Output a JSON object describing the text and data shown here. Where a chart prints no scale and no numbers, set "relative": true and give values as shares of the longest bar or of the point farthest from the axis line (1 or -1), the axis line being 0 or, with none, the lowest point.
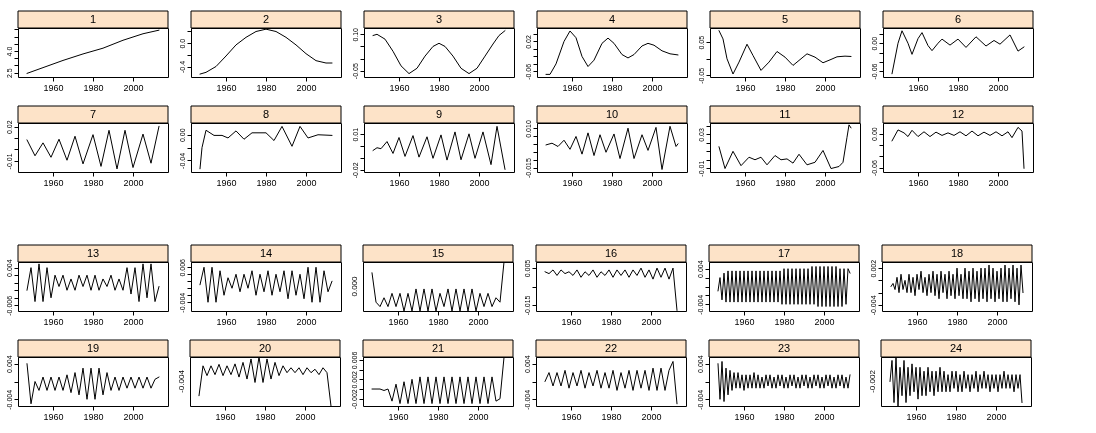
{
  "chart_data": [
    {
      "type": "line",
      "title": "1",
      "x": [
        1947,
        1955,
        1965,
        1975,
        1985,
        1995,
        2005,
        2013
      ],
      "values": [
        2.45,
        2.85,
        3.35,
        3.8,
        4.2,
        4.75,
        5.2,
        5.45
      ],
      "color": "#000000",
      "xlim": [
        1942.5,
        2017.5
      ],
      "xticks": [
        1960,
        1980,
        2000
      ],
      "ylim": [
        2.2,
        5.6
      ],
      "yticks": [
        2.5,
        {
          "value": 3,
          "label": null
        },
        {
          "value": 3.5,
          "label": null
        },
        {
          "value": 4,
          "label": "4.0"
        },
        {
          "value": 4.5,
          "label": null
        },
        {
          "value": 5,
          "label": null
        },
        {
          "value": 5.5,
          "label": null
        }
      ]
    },
    {
      "type": "line",
      "title": "2",
      "x": [
        1947,
        1950,
        1955,
        1960,
        1965,
        1970,
        1975,
        1980,
        1985,
        1990,
        1995,
        2000,
        2005,
        2010,
        2013
      ],
      "values": [
        -0.53,
        -0.5,
        -0.4,
        -0.22,
        -0.03,
        0.1,
        0.2,
        0.24,
        0.2,
        0.1,
        -0.03,
        -0.18,
        -0.3,
        -0.34,
        -0.34
      ],
      "color": "#000000",
      "xlim": [
        1942.5,
        2017.5
      ],
      "xticks": [
        1960,
        1980,
        2000
      ],
      "ylim": [
        -0.58,
        0.26
      ],
      "yticks": [
        -0.4,
        {
          "value": -0.2,
          "label": null
        },
        {
          "value": 0,
          "label": "0.0"
        },
        {
          "value": 0.2,
          "label": null
        }
      ]
    },
    {
      "type": "line",
      "title": "3",
      "x": [
        1947,
        1949,
        1953,
        1957,
        1961,
        1965,
        1969,
        1973,
        1977,
        1980,
        1983,
        1987,
        1991,
        1995,
        1999,
        2003,
        2007,
        2010,
        2013
      ],
      "values": [
        0.095,
        0.1,
        0.08,
        0.03,
        -0.03,
        -0.062,
        -0.04,
        0.01,
        0.05,
        0.063,
        0.05,
        0.01,
        -0.04,
        -0.062,
        -0.04,
        0.01,
        0.06,
        0.095,
        0.115
      ],
      "color": "#000000",
      "xlim": [
        1942.5,
        2017.5
      ],
      "xticks": [
        1960,
        1980,
        2000
      ],
      "ylim": [
        -0.076,
        0.126
      ],
      "yticks": [
        -0.05,
        {
          "value": 0,
          "label": null
        },
        {
          "value": 0.05,
          "label": null
        },
        {
          "value": 0.1,
          "label": "0.10"
        }
      ]
    },
    {
      "type": "line",
      "title": "4",
      "x": [
        1947,
        1949,
        1952,
        1956,
        1959,
        1962,
        1965,
        1968,
        1971,
        1975,
        1978,
        1981,
        1985,
        1988,
        1991,
        1995,
        1998,
        2001,
        2005,
        2009,
        2013
      ],
      "values": [
        -0.068,
        -0.068,
        -0.04,
        0.02,
        0.048,
        0.03,
        -0.02,
        -0.047,
        -0.03,
        0.015,
        0.029,
        0.015,
        -0.015,
        -0.024,
        -0.015,
        0.008,
        0.015,
        0.01,
        -0.005,
        -0.013,
        -0.016
      ],
      "color": "#000000",
      "xlim": [
        1942.5,
        2017.5
      ],
      "xticks": [
        1960,
        1980,
        2000
      ],
      "ylim": [
        -0.075,
        0.056
      ],
      "yticks": [
        -0.06,
        {
          "value": -0.04,
          "label": null
        },
        {
          "value": -0.02,
          "label": null
        },
        {
          "value": 0,
          "label": null
        },
        0.02,
        {
          "value": 0.04,
          "label": null
        }
      ]
    },
    {
      "type": "line",
      "title": "5",
      "x": [
        1947,
        1949,
        1951,
        1954,
        1957,
        1961,
        1964,
        1968,
        1972,
        1976,
        1980,
        1984,
        1987,
        1991,
        1995,
        1999,
        2003,
        2006,
        2010,
        2013
      ],
      "values": [
        0.085,
        0.06,
        0,
        -0.046,
        -0.01,
        0.044,
        0.01,
        -0.035,
        -0.01,
        0.022,
        0.005,
        -0.02,
        -0.005,
        0.015,
        0.005,
        -0.012,
        -0.002,
        0.006,
        0.008,
        0.007
      ],
      "color": "#000000",
      "xlim": [
        1942.5,
        2017.5
      ],
      "xticks": [
        1960,
        1980,
        2000
      ],
      "ylim": [
        -0.055,
        0.093
      ],
      "yticks": [
        -0.05,
        {
          "value": 0,
          "label": null
        },
        0.05
      ]
    },
    {
      "type": "line",
      "title": "6",
      "x": [
        1947,
        1950,
        1952,
        1955,
        1957,
        1960,
        1962,
        1965,
        1967,
        1970,
        1972,
        1976,
        1980,
        1984,
        1989,
        1994,
        1998,
        2001,
        2006,
        2010,
        2013
      ],
      "values": [
        -0.066,
        0,
        0.027,
        0,
        -0.024,
        0.01,
        0.023,
        -0.005,
        -0.016,
        0,
        0.009,
        -0.004,
        0.009,
        -0.009,
        0.014,
        -0.006,
        0.006,
        -0.002,
        0.018,
        -0.017,
        -0.008
      ],
      "color": "#000000",
      "xlim": [
        1942.5,
        2017.5
      ],
      "xticks": [
        1960,
        1980,
        2000
      ],
      "ylim": [
        -0.073,
        0.033
      ],
      "yticks": [
        -0.06,
        {
          "value": -0.04,
          "label": null
        },
        {
          "value": -0.02,
          "label": null
        },
        {
          "value": 0,
          "label": "0.00"
        },
        {
          "value": 0.02,
          "label": null
        }
      ]
    },
    {
      "type": "line",
      "title": "7",
      "x": [
        1947,
        1951,
        1955,
        1959,
        1963,
        1967,
        1971,
        1975,
        1980,
        1984,
        1988,
        1992,
        1996,
        2000,
        2005,
        2009,
        2013
      ],
      "values": [
        0.0084,
        -0.0055,
        0.0058,
        -0.0068,
        0.009,
        -0.0094,
        0.0116,
        -0.0126,
        0.013,
        -0.0148,
        0.0168,
        -0.017,
        0.0168,
        -0.0158,
        0.0135,
        -0.012,
        0.0203
      ],
      "color": "#000000",
      "xlim": [
        1942.5,
        2017.5
      ],
      "xticks": [
        1960,
        1980,
        2000
      ],
      "ylim": [
        -0.0197,
        0.0232
      ],
      "yticks": [
        -0.01,
        {
          "value": 0,
          "label": null
        },
        {
          "value": 0.01,
          "label": null
        },
        0.02
      ]
    },
    {
      "type": "line",
      "title": "8",
      "x": [
        1947,
        1948,
        1950,
        1954,
        1958,
        1961,
        1965,
        1969,
        1973,
        1980,
        1984,
        1988,
        1993,
        1997,
        2001,
        2006,
        2013
      ],
      "values": [
        -0.053,
        -0.02,
        0.007,
        -0.001,
        -0.001,
        -0.005,
        0.006,
        -0.007,
        0.003,
        0.003,
        -0.009,
        0.013,
        -0.018,
        0.013,
        -0.005,
        0,
        -0.001
      ],
      "color": "#000000",
      "xlim": [
        1942.5,
        2017.5
      ],
      "xticks": [
        1960,
        1980,
        2000
      ],
      "ylim": [
        -0.058,
        0.0183
      ],
      "yticks": [
        -0.04,
        {
          "value": -0.02,
          "label": null
        },
        {
          "value": 0,
          "label": "0.00"
        }
      ]
    },
    {
      "type": "line",
      "title": "9",
      "x": [
        1947,
        1949,
        1951,
        1954,
        1957,
        1960,
        1963,
        1967,
        1970,
        1974,
        1977,
        1981,
        1984,
        1988,
        1991,
        1995,
        1998,
        2002,
        2006,
        2009,
        2013
      ],
      "values": [
        -0.0037,
        -0.0014,
        -0.0022,
        0.0038,
        -0.0062,
        0.0072,
        -0.0087,
        0.0088,
        -0.0093,
        0.0078,
        -0.0103,
        0.0094,
        -0.0118,
        0.0119,
        -0.0115,
        0.0103,
        -0.0103,
        0.0119,
        -0.0156,
        0.0166,
        -0.0196
      ],
      "color": "#000000",
      "xlim": [
        1942.5,
        2017.5
      ],
      "xticks": [
        1960,
        1980,
        2000
      ],
      "ylim": [
        -0.0218,
        0.0194
      ],
      "yticks": [
        -0.02,
        {
          "value": -0.01,
          "label": null
        },
        {
          "value": 0,
          "label": null
        },
        0.01
      ]
    },
    {
      "type": "line",
      "title": "10",
      "x": [
        1947,
        1950,
        1953,
        1956,
        1959,
        1962,
        1965,
        1968,
        1971,
        1974,
        1977,
        1981,
        1984,
        1988,
        1991,
        1995,
        1998,
        2002,
        2005,
        2009,
        2012,
        2013
      ],
      "values": [
        -0.0005,
        0.0006,
        -0.0015,
        0.0025,
        -0.0033,
        0.0049,
        -0.0064,
        0.0072,
        -0.0073,
        0.006,
        -0.0052,
        0.0065,
        -0.0092,
        0.0102,
        -0.0092,
        0.006,
        -0.004,
        0.0107,
        -0.0162,
        0.0114,
        -0.0015,
        0.0002
      ],
      "color": "#000000",
      "xlim": [
        1942.5,
        2017.5
      ],
      "xticks": [
        1960,
        1980,
        2000
      ],
      "ylim": [
        -0.0178,
        0.0135
      ],
      "yticks": [
        -0.015,
        {
          "value": -0.01,
          "label": null
        },
        {
          "value": -0.005,
          "label": null
        },
        {
          "value": 0,
          "label": null
        },
        {
          "value": 0.005,
          "label": null
        },
        {
          "value": 0.01,
          "label": "0.010"
        }
      ]
    },
    {
      "type": "line",
      "title": "11",
      "x": [
        1947,
        1950,
        1954,
        1958,
        1962,
        1965,
        1968,
        1971,
        1975,
        1978,
        1981,
        1984,
        1987,
        1991,
        1995,
        1999,
        2003,
        2007,
        2009,
        2011,
        2012,
        2013
      ],
      "values": [
        0.0154,
        -0.0104,
        0.01,
        -0.007,
        0.003,
        0,
        0.003,
        -0.006,
        0.005,
        0,
        0.001,
        -0.004,
        0.0065,
        -0.006,
        -0.003,
        0.011,
        -0.0104,
        -0.008,
        -0.003,
        0.0266,
        0.0413,
        0.0377
      ],
      "color": "#000000",
      "xlim": [
        1942.5,
        2017.5
      ],
      "xticks": [
        1960,
        1980,
        2000
      ],
      "ylim": [
        -0.0145,
        0.0435
      ],
      "yticks": [
        -0.01,
        {
          "value": 0,
          "label": null
        },
        {
          "value": 0.01,
          "label": null
        },
        {
          "value": 0.02,
          "label": null
        },
        0.03,
        {
          "value": 0.04,
          "label": null
        }
      ]
    },
    {
      "type": "line",
      "title": "12",
      "x": [
        1947,
        1950,
        1953,
        1955,
        1957,
        1960,
        1963,
        1966,
        1969,
        1972,
        1975,
        1978,
        1981,
        1984,
        1987,
        1990,
        1993,
        1996,
        1999,
        2002,
        2005,
        2007,
        2010,
        2012,
        2013
      ],
      "values": [
        -0.0129,
        0.0065,
        0.0013,
        -0.0052,
        0.0058,
        -0.0052,
        0.0032,
        -0.0052,
        0.0026,
        -0.0032,
        0.0013,
        -0.0032,
        0.0032,
        -0.0039,
        0.0045,
        -0.0039,
        0.0026,
        -0.0032,
        0.0032,
        -0.0039,
        0.0032,
        -0.0071,
        0.011,
        0.0045,
        -0.0613
      ],
      "color": "#000000",
      "xlim": [
        1942.5,
        2017.5
      ],
      "xticks": [
        1960,
        1980,
        2000
      ],
      "ylim": [
        -0.0677,
        0.0187
      ],
      "yticks": [
        -0.06,
        {
          "value": -0.04,
          "label": null
        },
        {
          "value": -0.02,
          "label": null
        },
        {
          "value": 0,
          "label": "0.00"
        }
      ]
    },
    {
      "type": "line",
      "title": "13",
      "x": [
        1947,
        1949,
        1951,
        1953,
        1955,
        1957,
        1959,
        1961,
        1963,
        1965,
        1967,
        1969,
        1971,
        1973,
        1975,
        1977,
        1979,
        1981,
        1983,
        1985,
        1987,
        1989,
        1991,
        1993,
        1995,
        1997,
        1999,
        2001,
        2003,
        2005,
        2007,
        2009,
        2011,
        2013
      ],
      "values": [
        -0.002,
        0.004,
        -0.005,
        0.005,
        -0.005,
        0.004,
        -0.004,
        0.002,
        -0.001,
        0.002,
        -0.002,
        0.001,
        -0.002,
        0.002,
        -0.001,
        0.002,
        -0.002,
        0.002,
        -0.002,
        0.001,
        -0.001,
        0.002,
        -0.002,
        0.001,
        -0.002,
        0.004,
        -0.003,
        0.004,
        -0.005,
        0.005,
        -0.004,
        0.005,
        -0.005,
        -0.001
      ],
      "color": "#000000",
      "xlim": [
        1942.5,
        2017.5
      ],
      "xticks": [
        1960,
        1980,
        2000
      ],
      "ylim": [
        -0.0075,
        0.0055
      ],
      "yticks": [
        -0.006,
        {
          "value": -0.004,
          "label": null
        },
        {
          "value": -0.002,
          "label": null
        },
        {
          "value": 0,
          "label": null
        },
        {
          "value": 0.002,
          "label": null
        },
        0.004
      ]
    },
    {
      "type": "line",
      "title": "14",
      "x": [
        1947,
        1949,
        1951,
        1953,
        1955,
        1957,
        1959,
        1961,
        1963,
        1965,
        1967,
        1969,
        1971,
        1973,
        1975,
        1977,
        1979,
        1981,
        1983,
        1985,
        1987,
        1989,
        1991,
        1993,
        1995,
        1997,
        1999,
        2001,
        2003,
        2005,
        2007,
        2009,
        2011,
        2013
      ],
      "values": [
        0.001,
        0.006,
        -0.004,
        0.006,
        -0.004,
        0.005,
        -0.002,
        0.003,
        0,
        0.004,
        -0.001,
        0.004,
        0,
        0.005,
        -0.002,
        0.004,
        -0.001,
        0.005,
        -0.002,
        0.004,
        -0.001,
        0.005,
        -0.003,
        0.005,
        -0.002,
        0.004,
        -0.003,
        0.006,
        -0.004,
        0.006,
        -0.004,
        0.005,
        -0.001,
        0.002
      ],
      "color": "#000000",
      "xlim": [
        1942.5,
        2017.5
      ],
      "xticks": [
        1960,
        1980,
        2000
      ],
      "ylim": [
        -0.0065,
        0.0075
      ],
      "yticks": [
        -0.004,
        {
          "value": -0.002,
          "label": null
        },
        {
          "value": 0,
          "label": null
        },
        {
          "value": 0.002,
          "label": null
        },
        {
          "value": 0.004,
          "label": null
        },
        0.006
      ]
    },
    {
      "type": "line",
      "title": "15",
      "x": [
        1947,
        1949,
        1951,
        1953,
        1955,
        1957,
        1959,
        1961,
        1963,
        1965,
        1967,
        1969,
        1971,
        1973,
        1975,
        1977,
        1979,
        1981,
        1983,
        1985,
        1987,
        1989,
        1991,
        1993,
        1995,
        1997,
        1999,
        2001,
        2003,
        2005,
        2007,
        2009,
        2011,
        2013
      ],
      "values": [
        0.78,
        0.18,
        0.09,
        0.27,
        0.09,
        0.36,
        0.09,
        0.36,
        0,
        0.36,
        0,
        0.45,
        0,
        0.45,
        0,
        0.45,
        0,
        0.36,
        0.09,
        0.45,
        0,
        0.45,
        0,
        0.45,
        0,
        0.45,
        0,
        0.36,
        0.09,
        0.36,
        0.09,
        0.27,
        0.18,
        1
      ],
      "relative": true,
      "annotations": [
        "0.000"
      ],
      "color": "#000000",
      "xlim": [
        1942.5,
        2017.5
      ],
      "xticks": [
        1960,
        1980,
        2000
      ]
    },
    {
      "type": "line",
      "title": "16",
      "x": [
        1947,
        1949,
        1951,
        1953,
        1955,
        1957,
        1959,
        1961,
        1963,
        1965,
        1967,
        1969,
        1971,
        1973,
        1975,
        1977,
        1979,
        1981,
        1983,
        1985,
        1987,
        1989,
        1991,
        1993,
        1995,
        1997,
        1999,
        2001,
        2003,
        2005,
        2007,
        2009,
        2011,
        2013
      ],
      "values": [
        0.003,
        0.002,
        0.004,
        0.001,
        0.004,
        0.002,
        0.003,
        0.001,
        0.004,
        0,
        0.003,
        0.001,
        0.004,
        0,
        0.003,
        0.001,
        0.004,
        0,
        0.004,
        0.001,
        0.004,
        0,
        0.004,
        0.001,
        0.005,
        0,
        0.004,
        -0.001,
        0.005,
        0,
        0.005,
        -0.001,
        0.005,
        -0.018
      ],
      "color": "#000000",
      "xlim": [
        1942.5,
        2017.5
      ],
      "xticks": [
        1960,
        1980,
        2000
      ],
      "ylim": [
        -0.0183,
        0.0083
      ],
      "yticks": [
        -0.015,
        {
          "value": -0.005,
          "label": null
        },
        0.005
      ]
    },
    {
      "type": "line",
      "title": "17",
      "x": [
        1947,
        1948,
        1949,
        1950,
        1951,
        1952,
        1953,
        1954,
        1955,
        1956,
        1957,
        1958,
        1959,
        1960,
        1961,
        1962,
        1963,
        1964,
        1965,
        1966,
        1967,
        1968,
        1969,
        1970,
        1971,
        1972,
        1973,
        1974,
        1975,
        1976,
        1977,
        1978,
        1979,
        1980,
        1981,
        1982,
        1983,
        1984,
        1985,
        1986,
        1987,
        1988,
        1989,
        1990,
        1991,
        1992,
        1993,
        1994,
        1995,
        1996,
        1997,
        1998,
        1999,
        2000,
        2001,
        2002,
        2003,
        2004,
        2005,
        2006,
        2007,
        2008,
        2009,
        2010,
        2011,
        2012,
        2013
      ],
      "values": [
        -0.001,
        0.002,
        -0.003,
        0.003,
        -0.0035,
        0.0035,
        -0.0035,
        0.0035,
        -0.0035,
        0.0035,
        -0.0035,
        0.0035,
        -0.0035,
        0.0035,
        -0.0035,
        0.0035,
        -0.0035,
        0.0035,
        -0.0035,
        0.0035,
        -0.0035,
        0.0035,
        -0.0035,
        0.0035,
        -0.0035,
        0.0035,
        -0.0035,
        0.0035,
        -0.0035,
        0.0035,
        -0.0035,
        0.0035,
        -0.004,
        0.004,
        -0.004,
        0.004,
        -0.004,
        0.004,
        -0.004,
        0.004,
        -0.004,
        0.004,
        -0.004,
        0.004,
        -0.004,
        0.004,
        -0.004,
        0.0045,
        -0.004,
        0.0045,
        -0.0045,
        0.0045,
        -0.0045,
        0.0045,
        -0.0045,
        0.0045,
        -0.0045,
        0.0045,
        -0.0045,
        0.0045,
        -0.0045,
        0.004,
        -0.0045,
        0.004,
        -0.004,
        0.004,
        0.003
      ],
      "color": "#000000",
      "xlim": [
        1942.5,
        2017.5
      ],
      "xticks": [
        1960,
        1980,
        2000
      ],
      "ylim": [
        -0.0055,
        0.0055
      ],
      "yticks": [
        -0.004,
        {
          "value": -0.002,
          "label": null
        },
        {
          "value": 0,
          "label": null
        },
        {
          "value": 0.002,
          "label": null
        },
        0.004
      ]
    },
    {
      "type": "line",
      "title": "18",
      "x": [
        1947,
        1948,
        1949,
        1950,
        1951,
        1952,
        1953,
        1954,
        1955,
        1956,
        1957,
        1958,
        1959,
        1960,
        1961,
        1962,
        1963,
        1964,
        1965,
        1966,
        1967,
        1968,
        1969,
        1970,
        1971,
        1972,
        1973,
        1974,
        1975,
        1976,
        1977,
        1978,
        1979,
        1980,
        1981,
        1982,
        1983,
        1984,
        1985,
        1986,
        1987,
        1988,
        1989,
        1990,
        1991,
        1992,
        1993,
        1994,
        1995,
        1996,
        1997,
        1998,
        1999,
        2000,
        2001,
        2002,
        2003,
        2004,
        2005,
        2006,
        2007,
        2008,
        2009,
        2010,
        2011,
        2012,
        2013
      ],
      "values": [
        -0.001,
        -0.0005,
        -0.0015,
        0.0005,
        -0.002,
        0.001,
        -0.0015,
        0,
        -0.002,
        0.001,
        -0.002,
        0.0005,
        -0.0025,
        0.001,
        -0.0015,
        0.0015,
        -0.002,
        0.0005,
        -0.0025,
        0.001,
        -0.002,
        0.0015,
        -0.0025,
        0.001,
        -0.003,
        0.0015,
        -0.002,
        0.001,
        -0.003,
        0.0015,
        -0.0025,
        0.001,
        -0.003,
        0.002,
        -0.0025,
        0.001,
        -0.003,
        0.002,
        -0.003,
        0.0015,
        -0.0035,
        0.002,
        -0.003,
        0.0015,
        -0.0035,
        0.002,
        -0.003,
        0.002,
        -0.0035,
        0.0025,
        -0.003,
        0.002,
        -0.0035,
        0.0015,
        -0.003,
        0.002,
        -0.0035,
        0.0025,
        -0.0035,
        0.002,
        -0.003,
        0.0025,
        -0.0035,
        0.002,
        -0.004,
        0.0025,
        -0.002
      ],
      "color": "#000000",
      "xlim": [
        1942.5,
        2017.5
      ],
      "xticks": [
        1960,
        1980,
        2000
      ],
      "ylim": [
        -0.005,
        0.003
      ],
      "yticks": [
        -0.004,
        {
          "value": -0.002,
          "label": null
        },
        {
          "value": 0,
          "label": null
        },
        0.002
      ]
    },
    {
      "type": "line",
      "title": "19",
      "x": [
        1947,
        1949,
        1951,
        1953,
        1955,
        1957,
        1959,
        1961,
        1963,
        1965,
        1967,
        1969,
        1971,
        1973,
        1975,
        1977,
        1979,
        1981,
        1983,
        1985,
        1987,
        1989,
        1991,
        1993,
        1995,
        1997,
        1999,
        2001,
        2003,
        2005,
        2007,
        2009,
        2011,
        2013
      ],
      "values": [
        0.004,
        -0.005,
        0,
        -0.002,
        0.001,
        -0.002,
        0.001,
        -0.002,
        0.001,
        -0.002,
        0.0015,
        -0.0025,
        0.002,
        -0.003,
        0.003,
        -0.004,
        0.003,
        -0.004,
        0.003,
        -0.003,
        0.002,
        -0.002,
        0.001,
        -0.002,
        0.001,
        -0.0015,
        0.001,
        -0.0015,
        0.001,
        -0.0015,
        0.001,
        -0.0015,
        0.0005,
        0.001
      ],
      "color": "#000000",
      "xlim": [
        1942.5,
        2017.5
      ],
      "xticks": [
        1960,
        1980,
        2000
      ],
      "ylim": [
        -0.0055,
        0.0055
      ],
      "yticks": [
        -0.004,
        {
          "value": 0,
          "label": null
        },
        0.004
      ]
    },
    {
      "type": "line",
      "title": "20",
      "x": [
        1947,
        1949,
        1951,
        1953,
        1955,
        1957,
        1959,
        1961,
        1963,
        1965,
        1967,
        1969,
        1971,
        1973,
        1975,
        1977,
        1979,
        1981,
        1983,
        1985,
        1987,
        1989,
        1991,
        1993,
        1995,
        1997,
        1999,
        2001,
        2003,
        2005,
        2007,
        2009,
        2011,
        2013
      ],
      "values": [
        0.21,
        0.82,
        0.62,
        0.82,
        0.64,
        0.85,
        0.62,
        0.82,
        0.64,
        0.86,
        0.59,
        0.89,
        0.55,
        0.96,
        0.48,
        1,
        0.48,
        0.96,
        0.55,
        0.89,
        0.62,
        0.82,
        0.68,
        0.78,
        0.68,
        0.78,
        0.64,
        0.78,
        0.68,
        0.75,
        0.64,
        0.78,
        0.68,
        0
      ],
      "relative": true,
      "annotations": [
        "-0.004"
      ],
      "color": "#000000",
      "xlim": [
        1942.5,
        2017.5
      ],
      "xticks": [
        1960,
        1980,
        2000
      ]
    },
    {
      "type": "line",
      "title": "21",
      "x": [
        1947,
        1949,
        1951,
        1953,
        1955,
        1957,
        1959,
        1961,
        1963,
        1965,
        1967,
        1969,
        1971,
        1973,
        1975,
        1977,
        1979,
        1981,
        1983,
        1985,
        1987,
        1989,
        1991,
        1993,
        1995,
        1997,
        1999,
        2001,
        2003,
        2005,
        2007,
        2009,
        2011,
        2013
      ],
      "values": [
        0,
        0,
        0,
        -0.0003,
        0,
        -0.0025,
        0.001,
        -0.003,
        0.0015,
        -0.003,
        0.002,
        -0.003,
        0.0025,
        -0.003,
        0.0025,
        -0.003,
        0.0025,
        -0.003,
        0.0025,
        -0.003,
        0.0025,
        -0.003,
        0.0025,
        -0.003,
        0.0025,
        -0.003,
        0.0025,
        -0.003,
        0.0025,
        -0.003,
        0.0025,
        -0.0025,
        -0.002,
        0.0065
      ],
      "color": "#000000",
      "xlim": [
        1942.5,
        2017.5
      ],
      "xticks": [
        1960,
        1980,
        2000
      ],
      "ylim": [
        -0.0035,
        0.0066
      ],
      "yticks": [
        -0.002,
        {
          "value": 0,
          "label": null
        },
        0.002,
        {
          "value": 0.004,
          "label": null
        },
        0.006
      ]
    },
    {
      "type": "line",
      "title": "22",
      "x": [
        1947,
        1949,
        1951,
        1953,
        1955,
        1957,
        1959,
        1961,
        1963,
        1965,
        1967,
        1969,
        1971,
        1973,
        1975,
        1977,
        1979,
        1981,
        1983,
        1985,
        1987,
        1989,
        1991,
        1993,
        1995,
        1997,
        1999,
        2001,
        2003,
        2005,
        2007,
        2009,
        2011,
        2013
      ],
      "values": [
        0,
        0.002,
        -0.001,
        0.002,
        -0.001,
        0.0025,
        -0.0015,
        0.002,
        -0.001,
        0.0025,
        -0.0015,
        0.002,
        -0.001,
        0.0025,
        -0.0015,
        0.002,
        -0.0015,
        0.0025,
        -0.002,
        0.002,
        -0.0015,
        0.0025,
        -0.002,
        0.0025,
        -0.0015,
        0.0025,
        -0.002,
        0.003,
        -0.002,
        0.003,
        -0.002,
        0.0025,
        0.0045,
        -0.005
      ],
      "color": "#000000",
      "xlim": [
        1942.5,
        2017.5
      ],
      "xticks": [
        1960,
        1980,
        2000
      ],
      "ylim": [
        -0.0055,
        0.0055
      ],
      "yticks": [
        -0.004,
        {
          "value": 0,
          "label": null
        },
        0.004
      ]
    },
    {
      "type": "line",
      "title": "23",
      "x": [
        1947,
        1948,
        1949,
        1950,
        1951,
        1952,
        1953,
        1954,
        1955,
        1956,
        1957,
        1958,
        1959,
        1960,
        1961,
        1962,
        1963,
        1964,
        1965,
        1966,
        1967,
        1968,
        1969,
        1970,
        1971,
        1972,
        1973,
        1974,
        1975,
        1976,
        1977,
        1978,
        1979,
        1980,
        1981,
        1982,
        1983,
        1984,
        1985,
        1986,
        1987,
        1988,
        1989,
        1990,
        1991,
        1992,
        1993,
        1994,
        1995,
        1996,
        1997,
        1998,
        1999,
        2000,
        2001,
        2002,
        2003,
        2004,
        2005,
        2006,
        2007,
        2008,
        2009,
        2010,
        2011,
        2012,
        2013
      ],
      "values": [
        0.004,
        -0.004,
        0.0045,
        -0.0045,
        0.003,
        -0.003,
        0.0025,
        -0.002,
        0.002,
        -0.0015,
        0.002,
        -0.0015,
        0.0015,
        -0.002,
        0.0015,
        -0.0015,
        0.0015,
        -0.0015,
        0.002,
        -0.0015,
        0.0015,
        -0.0015,
        0.001,
        -0.0015,
        0.0015,
        -0.001,
        0.0015,
        -0.0015,
        0.001,
        -0.0015,
        0.0015,
        -0.001,
        0.0015,
        -0.0015,
        0.001,
        -0.0015,
        0.0015,
        -0.001,
        0.0015,
        -0.0015,
        0.001,
        -0.0015,
        0.0015,
        -0.001,
        0.0015,
        -0.0015,
        0.001,
        -0.0015,
        0.0015,
        -0.001,
        0.0015,
        -0.0015,
        0.001,
        -0.0015,
        0.0015,
        -0.001,
        0.0015,
        -0.0015,
        0.001,
        -0.0015,
        0.0015,
        -0.001,
        0.0015,
        -0.0015,
        0.001,
        -0.0015,
        0.0015
      ],
      "color": "#000000",
      "xlim": [
        1942.5,
        2017.5
      ],
      "xticks": [
        1960,
        1980,
        2000
      ],
      "ylim": [
        -0.0055,
        0.0055
      ],
      "yticks": [
        -0.004,
        {
          "value": 0,
          "label": null
        },
        0.004
      ]
    },
    {
      "type": "line",
      "title": "24",
      "x": [
        1947,
        1948,
        1949,
        1950,
        1951,
        1952,
        1953,
        1954,
        1955,
        1956,
        1957,
        1958,
        1959,
        1960,
        1961,
        1962,
        1963,
        1964,
        1965,
        1966,
        1967,
        1968,
        1969,
        1970,
        1971,
        1972,
        1973,
        1974,
        1975,
        1976,
        1977,
        1978,
        1979,
        1980,
        1981,
        1982,
        1983,
        1984,
        1985,
        1986,
        1987,
        1988,
        1989,
        1990,
        1991,
        1992,
        1993,
        1994,
        1995,
        1996,
        1997,
        1998,
        1999,
        2000,
        2001,
        2002,
        2003,
        2004,
        2005,
        2006,
        2007,
        2008,
        2009,
        2010,
        2011,
        2012,
        2013
      ],
      "values": [
        0.5,
        0.93,
        0.07,
        1,
        0,
        0.79,
        0.21,
        0.93,
        0.07,
        0.79,
        0.21,
        0.86,
        0.29,
        0.79,
        0.14,
        0.79,
        0.21,
        0.71,
        0.21,
        0.79,
        0.29,
        0.71,
        0.21,
        0.71,
        0.29,
        0.79,
        0.29,
        0.71,
        0.29,
        0.64,
        0.29,
        0.71,
        0.36,
        0.71,
        0.29,
        0.64,
        0.29,
        0.71,
        0.36,
        0.64,
        0.29,
        0.64,
        0.36,
        0.71,
        0.29,
        0.64,
        0.36,
        0.71,
        0.36,
        0.64,
        0.29,
        0.64,
        0.36,
        0.64,
        0.29,
        0.64,
        0.36,
        0.71,
        0.36,
        0.64,
        0.36,
        0.64,
        0.29,
        0.64,
        0.36,
        0.64,
        0.07
      ],
      "relative": true,
      "annotations": [
        "-0.002"
      ],
      "color": "#000000",
      "xlim": [
        1942.5,
        2017.5
      ],
      "xticks": [
        1960,
        1980,
        2000
      ]
    }
  ]
}
